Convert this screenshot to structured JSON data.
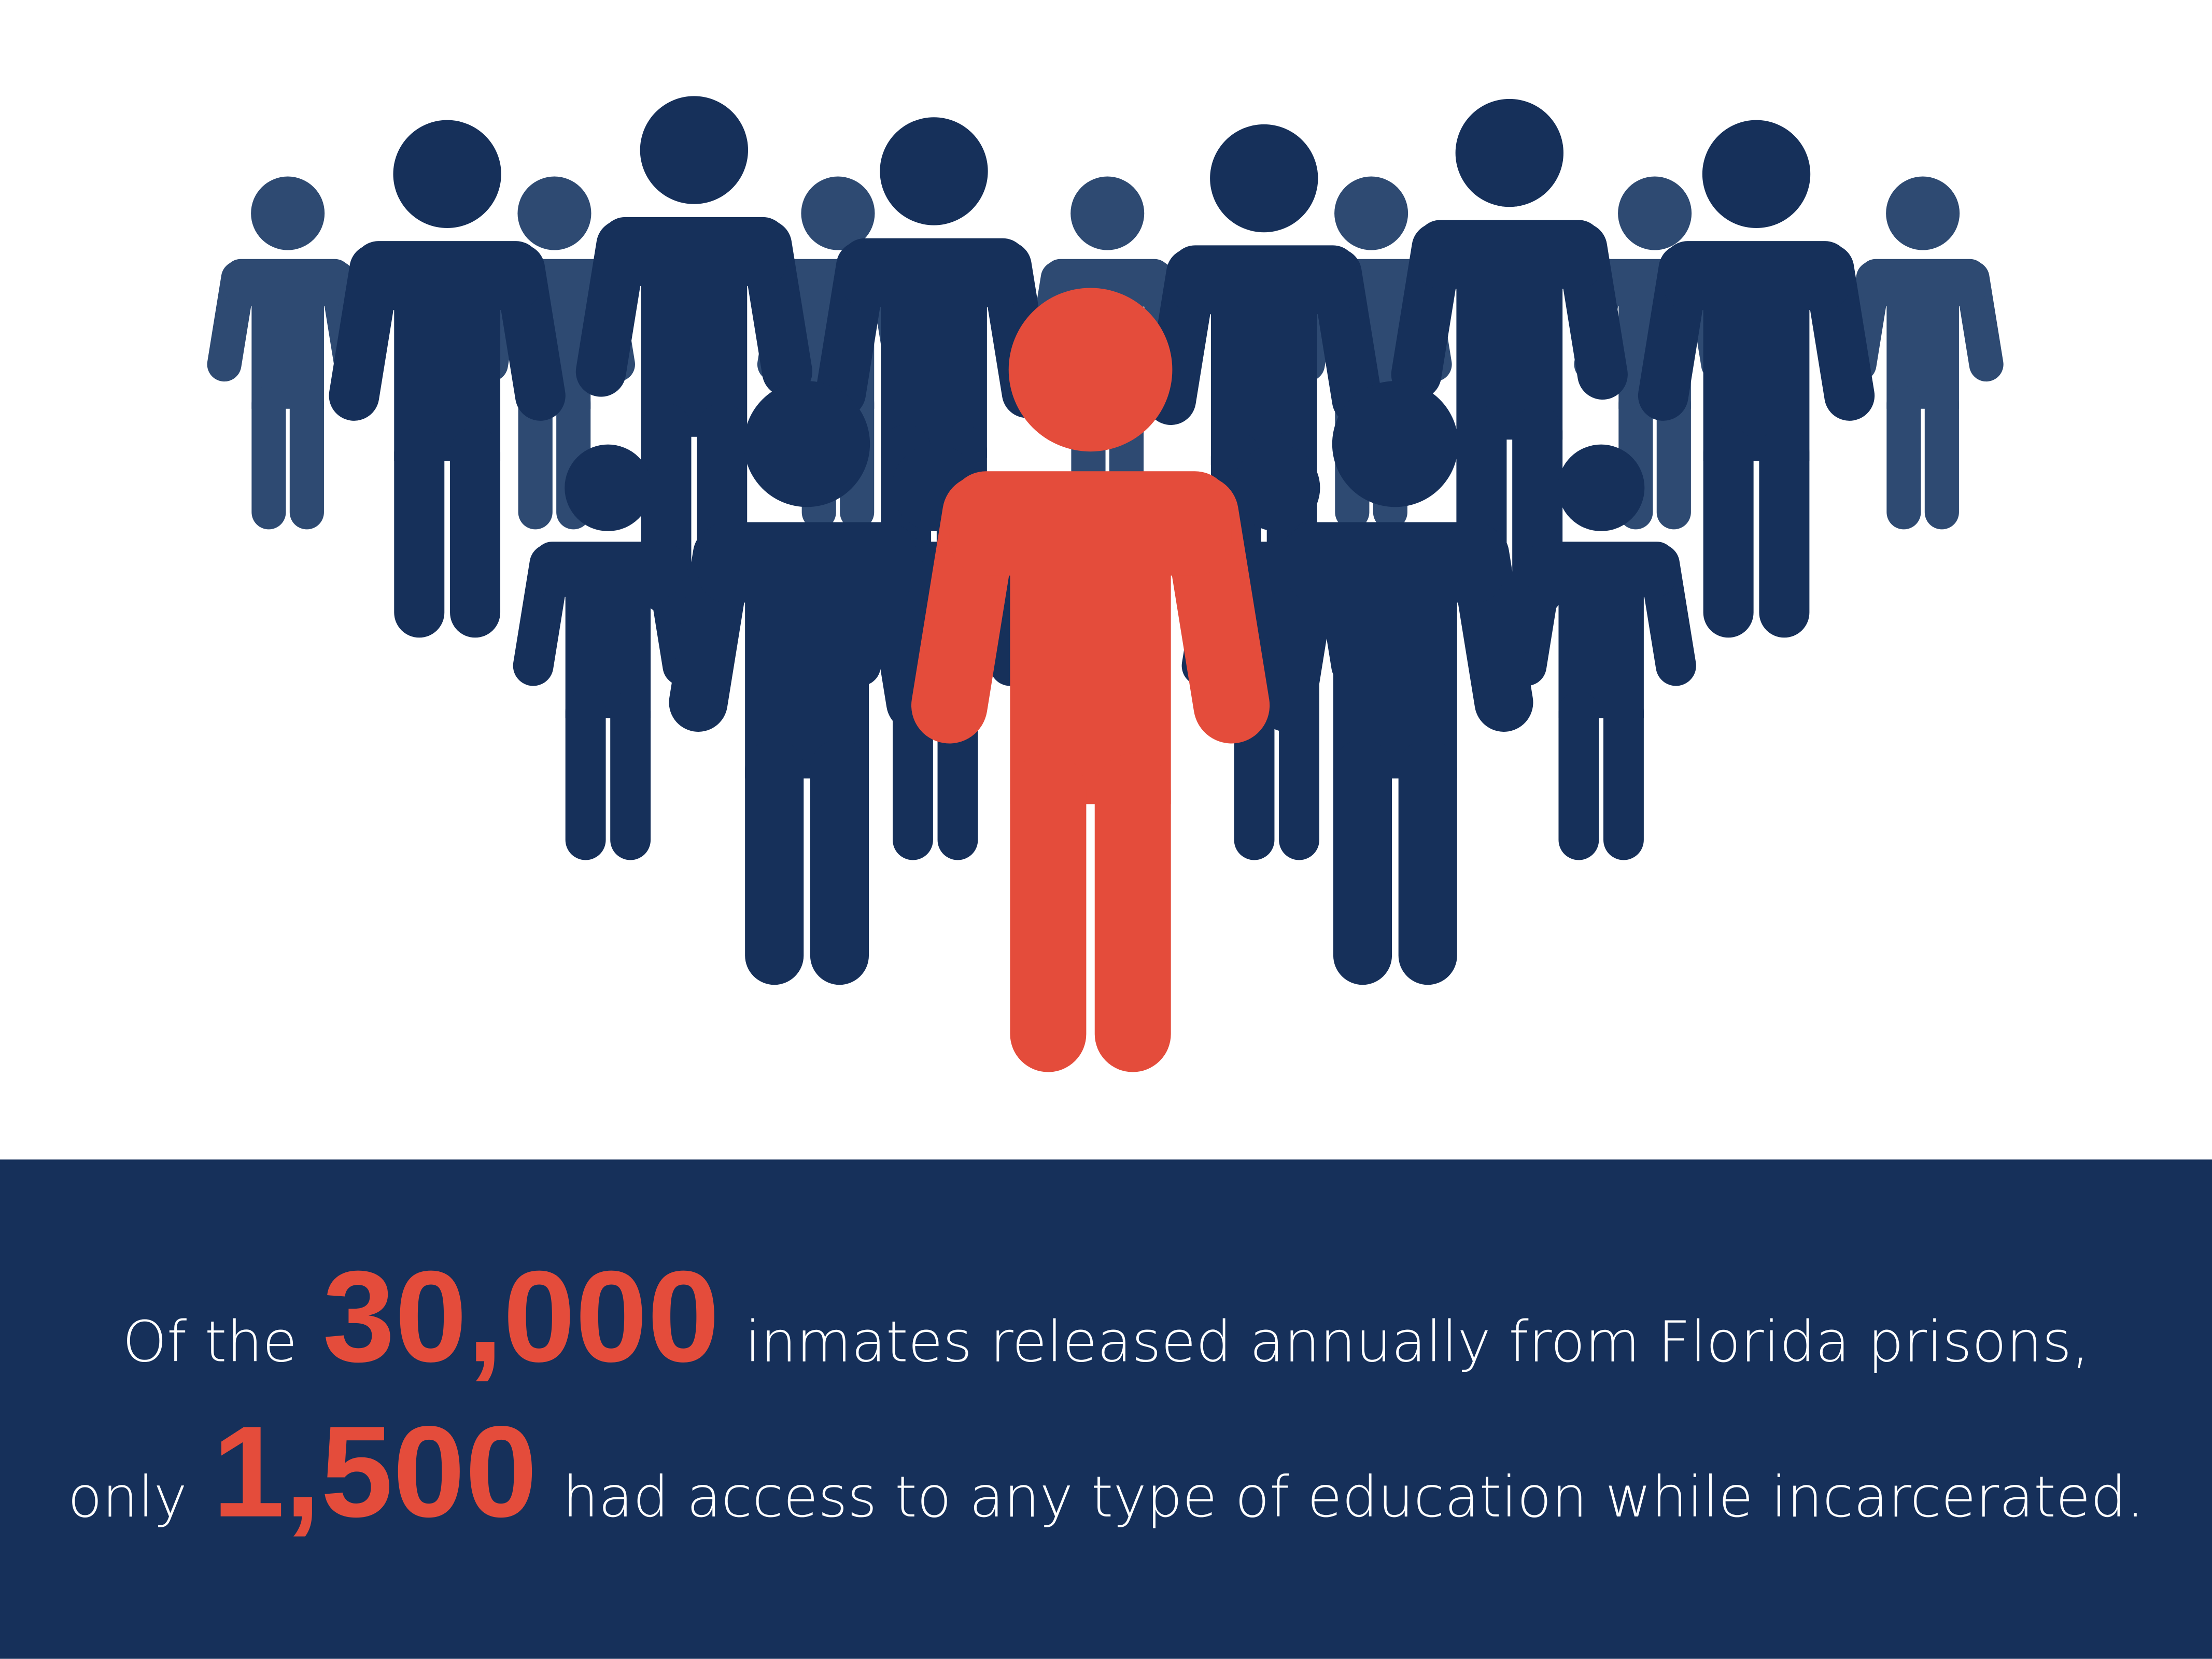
{
  "statement": {
    "lines": [
      {
        "before": "Of the",
        "number": "30,000",
        "after": "inmates released annually from Florida prisons,"
      },
      {
        "before": "only",
        "number": "1,500",
        "after": "had access to any type of education while incarcerated."
      }
    ]
  }
}
